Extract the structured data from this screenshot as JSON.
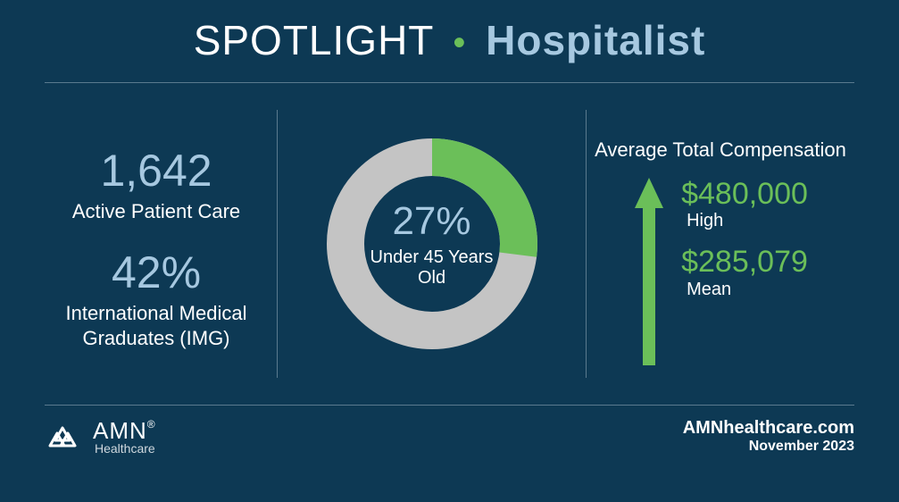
{
  "header": {
    "spotlight": "SPOTLIGHT",
    "bullet": "•",
    "topic": "Hospitalist"
  },
  "left": {
    "stat1_value": "1,642",
    "stat1_label": "Active Patient Care",
    "stat2_value": "42%",
    "stat2_label": "International Medical Graduates (IMG)"
  },
  "donut": {
    "percent_value": 27,
    "percent_text": "27%",
    "label": "Under 45 Years Old",
    "fill_color": "#6bbf59",
    "empty_color": "#c4c4c4",
    "thickness": 42,
    "radius": 118,
    "start_deg": 0,
    "background_color": "#0d3954"
  },
  "comp": {
    "title": "Average Total Compensation",
    "high_value": "$480,000",
    "high_label": "High",
    "mean_value": "$285,079",
    "mean_label": "Mean",
    "arrow_color": "#6bbf59"
  },
  "footer": {
    "brand_main": "AMN",
    "brand_reg": "®",
    "brand_sub": "Healthcare",
    "site": "AMNhealthcare.com",
    "date": "November 2023"
  },
  "colors": {
    "bg": "#0d3954",
    "accent_blue": "#a6c8e0",
    "accent_green": "#6bbf59",
    "divider": "#5a7a8e",
    "text": "#ffffff"
  }
}
